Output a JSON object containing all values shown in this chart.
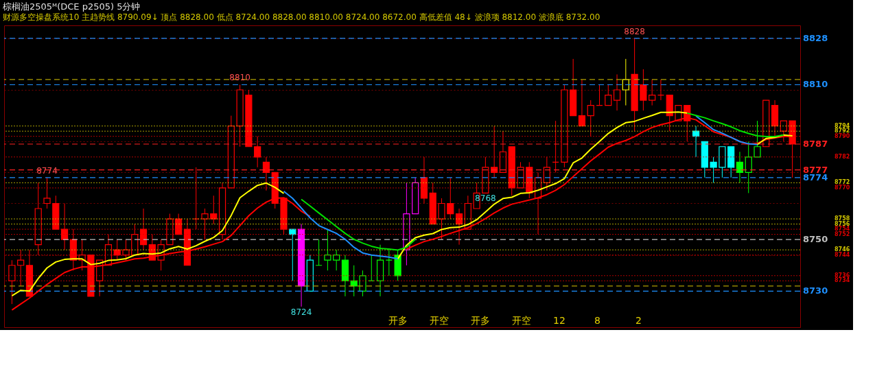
{
  "chart_data": {
    "type": "candlestick",
    "title": "棕榈油2505ᴹ(DCE p2505)  5分钟",
    "subtitle": "财源多空操盘系统10  主趋势线 8790.09↓ 顶点 8828.00  低点 8724.00  8828.00  8810.00  8724.00  8672.00  高低差值 48↓ 波浪项 8812.00  波浪底 8732.00",
    "categories": [
      null,
      null,
      null,
      null,
      null,
      null,
      null,
      null,
      null,
      null,
      null,
      null,
      null,
      null,
      null,
      null,
      null,
      null,
      null,
      null,
      null,
      null,
      null,
      null,
      null,
      null,
      null,
      null,
      null,
      null,
      null,
      null,
      null,
      null,
      null,
      null,
      null,
      null,
      null,
      null,
      null,
      null,
      null,
      null,
      null,
      null,
      null,
      null,
      null,
      null,
      null,
      null,
      null,
      null,
      null,
      null,
      null,
      null,
      null,
      null,
      null,
      null,
      null,
      null,
      null,
      null,
      null,
      null,
      null,
      null,
      null,
      null,
      null,
      null,
      null,
      null,
      null,
      null,
      null,
      null,
      null,
      null,
      null,
      null,
      null,
      null,
      null,
      null,
      null,
      null
    ],
    "ohlc": [
      [
        8734,
        8742,
        8725,
        8740
      ],
      [
        8740,
        8746,
        8732,
        8742
      ],
      [
        8740,
        8746,
        8728,
        8728
      ],
      [
        8748,
        8772,
        8744,
        8762
      ],
      [
        8764,
        8774,
        8762,
        8766
      ],
      [
        8764,
        8767,
        8754,
        8754
      ],
      [
        8754,
        8764,
        8746,
        8750
      ],
      [
        8750,
        8754,
        8738,
        8742
      ],
      [
        8742,
        8750,
        8738,
        8744
      ],
      [
        8744,
        8744,
        8728,
        8728
      ],
      [
        8734,
        8742,
        8728,
        8742
      ],
      [
        8740,
        8752,
        8740,
        8748
      ],
      [
        8746,
        8750,
        8742,
        8744
      ],
      [
        8744,
        8750,
        8742,
        8746
      ],
      [
        8744,
        8756,
        8744,
        8752
      ],
      [
        8754,
        8762,
        8746,
        8748
      ],
      [
        8748,
        8752,
        8742,
        8742
      ],
      [
        8742,
        8750,
        8738,
        8748
      ],
      [
        8748,
        8760,
        8748,
        8758
      ],
      [
        8758,
        8760,
        8752,
        8752
      ],
      [
        8754,
        8758,
        8740,
        8740
      ],
      [
        8758,
        8778,
        8754,
        8758
      ],
      [
        8758,
        8762,
        8750,
        8760
      ],
      [
        8760,
        8767,
        8756,
        8758
      ],
      [
        8752,
        8772,
        8750,
        8770
      ],
      [
        8770,
        8798,
        8770,
        8794
      ],
      [
        8794,
        8810,
        8786,
        8808
      ],
      [
        8806,
        8808,
        8786,
        8786
      ],
      [
        8786,
        8790,
        8778,
        8782
      ],
      [
        8780,
        8782,
        8769,
        8776
      ],
      [
        8776,
        8776,
        8762,
        8764
      ],
      [
        8766,
        8766,
        8752,
        8754
      ],
      [
        8754,
        8754,
        8734,
        8752
      ],
      [
        8754,
        8756,
        8724,
        8732
      ],
      [
        8730,
        8744,
        8730,
        8742
      ],
      [
        8740,
        8750,
        8740,
        8740
      ],
      [
        8742,
        8754,
        8738,
        8744
      ],
      [
        8742,
        8746,
        8738,
        8744
      ],
      [
        8742,
        8744,
        8728,
        8734
      ],
      [
        8734,
        8740,
        8728,
        8732
      ],
      [
        8730,
        8738,
        8728,
        8736
      ],
      [
        8734,
        8744,
        8734,
        8734
      ],
      [
        8734,
        8748,
        8728,
        8742
      ],
      [
        8742,
        8746,
        8736,
        8742
      ],
      [
        8744,
        8746,
        8734,
        8736
      ],
      [
        8746,
        8772,
        8740,
        8760
      ],
      [
        8760,
        8774,
        8760,
        8772
      ],
      [
        8774,
        8782,
        8764,
        8766
      ],
      [
        8768,
        8772,
        8756,
        8756
      ],
      [
        8758,
        8766,
        8750,
        8764
      ],
      [
        8764,
        8774,
        8758,
        8760
      ],
      [
        8760,
        8762,
        8748,
        8756
      ],
      [
        8754,
        8767,
        8754,
        8764
      ],
      [
        8762,
        8772,
        8762,
        8768
      ],
      [
        8768,
        8782,
        8768,
        8778
      ],
      [
        8778,
        8794,
        8774,
        8776
      ],
      [
        8776,
        8792,
        8776,
        8784
      ],
      [
        8786,
        8786,
        8767,
        8770
      ],
      [
        8770,
        8780,
        8770,
        8778
      ],
      [
        8778,
        8780,
        8766,
        8768
      ],
      [
        8766,
        8776,
        8752,
        8774
      ],
      [
        8772,
        8782,
        8769,
        8778
      ],
      [
        8780,
        8796,
        8776,
        8780
      ],
      [
        8780,
        8810,
        8778,
        8808
      ],
      [
        8808,
        8820,
        8798,
        8798
      ],
      [
        8798,
        8812,
        8794,
        8794
      ],
      [
        8798,
        8804,
        8790,
        8802
      ],
      [
        8802,
        8810,
        8802,
        8802
      ],
      [
        8802,
        8810,
        8802,
        8806
      ],
      [
        8804,
        8814,
        8800,
        8808
      ],
      [
        8808,
        8820,
        8802,
        8812
      ],
      [
        8814,
        8828,
        8792,
        8800
      ],
      [
        8810,
        8816,
        8800,
        8804
      ],
      [
        8804,
        8812,
        8802,
        8806
      ],
      [
        8806,
        8812,
        8804,
        8806
      ],
      [
        8806,
        8806,
        8792,
        8798
      ],
      [
        8796,
        8802,
        8796,
        8802
      ],
      [
        8802,
        8802,
        8788,
        8796
      ],
      [
        8792,
        8794,
        8782,
        8790
      ],
      [
        8788,
        8788,
        8774,
        8778
      ],
      [
        8780,
        8782,
        8772,
        8778
      ],
      [
        8778,
        8786,
        8774,
        8786
      ],
      [
        8786,
        8786,
        8774,
        8778
      ],
      [
        8780,
        8784,
        8772,
        8776
      ],
      [
        8776,
        8788,
        8768,
        8782
      ],
      [
        8782,
        8796,
        8782,
        8786
      ],
      [
        8786,
        8804,
        8786,
        8804
      ],
      [
        8802,
        8804,
        8790,
        8794
      ],
      [
        8792,
        8796,
        8788,
        8796
      ],
      [
        8796,
        8796,
        8774,
        8787
      ]
    ],
    "colors": [
      "#ff0000",
      "#ff0000",
      "#ff0000",
      "#ff0000",
      "#ff0000",
      "#ff0000",
      "#ff0000",
      "#ff0000",
      "#ff0000",
      "#ff0000",
      "#ff0000",
      "#ff0000",
      "#ff0000",
      "#ff0000",
      "#ff0000",
      "#ff0000",
      "#ff0000",
      "#ff0000",
      "#ff0000",
      "#ff0000",
      "#ff0000",
      "#ff0000",
      "#ff0000",
      "#ff0000",
      "#ff0000",
      "#ff0000",
      "#ff0000",
      "#ff0000",
      "#ff0000",
      "#ff0000",
      "#ff0000",
      "#ff0000",
      "#00ffff",
      "#ff00ff",
      "#00ffff",
      "#00ff00",
      "#00ff00",
      "#00ff00",
      "#00ff00",
      "#00ff00",
      "#00ff00",
      "#00ff00",
      "#00ff00",
      "#00ff00",
      "#00ff00",
      "#ff00ff",
      "#ff00ff",
      "#ff0000",
      "#ff0000",
      "#ff0000",
      "#ff0000",
      "#ff0000",
      "#ff0000",
      "#ff0000",
      "#ff0000",
      "#ff0000",
      "#ff0000",
      "#ff0000",
      "#ff0000",
      "#ff0000",
      "#ff0000",
      "#ff0000",
      "#ff0000",
      "#ff0000",
      "#ff0000",
      "#ff0000",
      "#ff0000",
      "#ff0000",
      "#ff0000",
      "#ff0000",
      "#ffff00",
      "#ff0000",
      "#ff0000",
      "#ff0000",
      "#ff0000",
      "#ff0000",
      "#ff0000",
      "#ff0000",
      "#00ffff",
      "#00ffff",
      "#00ffff",
      "#00ffff",
      "#00ffff",
      "#00ff00",
      "#00ff00",
      "#00ff00",
      "#ff0000",
      "#ff0000",
      "#ff0000",
      "#ff0000"
    ],
    "series": [
      {
        "type": "line",
        "color": "#ff0000",
        "values": [
          8722.7,
          8725,
          8727.3,
          8730,
          8732.6,
          8734.9,
          8737.2,
          8738.5,
          8739.4,
          8739.4,
          8739.8,
          8740.3,
          8741,
          8741.7,
          8742.5,
          8742.8,
          8743.4,
          8743.9,
          8744.6,
          8745.1,
          8745.5,
          8746.3,
          8747.2,
          8748.2,
          8749.2,
          8751.6,
          8755.4,
          8759.2,
          8762.2,
          8764.5,
          8766,
          8766.2,
          8764,
          8761,
          8759,
          null,
          null,
          null,
          null,
          null,
          null,
          null,
          null,
          null,
          null,
          8746.3,
          8747.8,
          8749.2,
          8750.1,
          8751.2,
          8752.4,
          8753.5,
          8754.6,
          8756.2,
          8758.1,
          8760.3,
          8762.2,
          8763.7,
          8764.5,
          8765.3,
          8766.2,
          8767.4,
          8769.1,
          8771.3,
          8774.4,
          8777.4,
          8780.5,
          8783.1,
          8785.8,
          8787.3,
          8788.4,
          8789.9,
          8791.8,
          8793.4,
          8794.5,
          8795.3,
          8796.4,
          8797.2,
          8796.4,
          8794.1,
          8791.8,
          8790.7,
          8789.6,
          8788,
          8786.9,
          8787.3,
          8788.8,
          8789.4,
          8789.9,
          8789.9
        ]
      },
      {
        "type": "line",
        "color": "#ffff00",
        "values": [
          8728.2,
          8730.3,
          8730,
          8734.9,
          8739,
          8741.3,
          8742.3,
          8742.5,
          8742.5,
          8740.3,
          8740.8,
          8741.9,
          8742.1,
          8742.6,
          8744,
          8744.6,
          8744.4,
          8744.8,
          8746.4,
          8747.3,
          8746.3,
          8747.6,
          8749.3,
          8750.8,
          8753.5,
          8759.3,
          8766.2,
          8768.7,
          8771,
          8771.9,
          8770.2,
          8767.9,
          null,
          null,
          null,
          null,
          null,
          null,
          null,
          null,
          null,
          null,
          null,
          null,
          8742.5,
          8747.8,
          8750.7,
          8751.7,
          8752.3,
          8753.9,
          8754.6,
          8754.8,
          8755.8,
          8757.7,
          8760.7,
          8763.7,
          8765.9,
          8766.4,
          8767.9,
          8768.1,
          8769.1,
          8770.4,
          8771.7,
          8773.6,
          8779.7,
          8781.6,
          8785,
          8788,
          8791.1,
          8793.4,
          8795.3,
          8795.8,
          8797,
          8798.1,
          8799.3,
          8799.3,
          8799.4,
          8799,
          null,
          null,
          null,
          null,
          null,
          null,
          null,
          8786.8,
          8789.2,
          8789.6,
          8790.5,
          8790.2
        ]
      },
      {
        "type": "line",
        "color": "#1e90ff",
        "values": [
          null,
          null,
          null,
          null,
          null,
          null,
          null,
          null,
          null,
          null,
          null,
          null,
          null,
          null,
          null,
          null,
          null,
          null,
          null,
          null,
          null,
          null,
          null,
          null,
          null,
          null,
          null,
          null,
          null,
          null,
          null,
          8768.7,
          8766,
          8762.2,
          8758.4,
          8755.4,
          8753.9,
          8752.4,
          8750.1,
          8747,
          8744.8,
          8744,
          8743.6,
          8743.2,
          8742.5,
          null,
          null,
          null,
          null,
          null,
          null,
          null,
          null,
          null,
          null,
          null,
          null,
          null,
          null,
          null,
          null,
          null,
          null,
          null,
          null,
          null,
          null,
          null,
          null,
          null,
          null,
          null,
          null,
          null,
          null,
          null,
          null,
          null,
          8797.9,
          8795.3,
          8792.6,
          8791.2,
          8789.6,
          8788,
          8787.1,
          8786.8,
          null,
          null,
          null,
          null
        ]
      },
      {
        "type": "line",
        "color": "#00e000",
        "values": [
          null,
          null,
          null,
          null,
          null,
          null,
          null,
          null,
          null,
          null,
          null,
          null,
          null,
          null,
          null,
          null,
          null,
          null,
          null,
          null,
          null,
          null,
          null,
          null,
          null,
          null,
          null,
          null,
          null,
          null,
          null,
          null,
          null,
          8765.6,
          8763,
          8760.3,
          8757.7,
          8755,
          8752.4,
          8750.1,
          8748.6,
          8747.4,
          8746.6,
          8746.3,
          8745.9,
          8747,
          8750.1,
          null,
          null,
          null,
          null,
          null,
          null,
          null,
          null,
          null,
          null,
          null,
          null,
          null,
          null,
          null,
          null,
          null,
          null,
          null,
          null,
          null,
          null,
          null,
          null,
          null,
          null,
          null,
          null,
          null,
          null,
          8799,
          8798.1,
          8797.2,
          8796,
          8794.9,
          8793.7,
          8792.2,
          8791.1,
          8790.2,
          8789.9,
          8789.9,
          8790.5,
          null
        ]
      }
    ],
    "ylim": [
      8716,
      8833
    ],
    "yticks": [
      {
        "value": 8744,
        "label": null
      },
      {
        "value": 8764,
        "label": null
      },
      {
        "value": 8776,
        "label": null
      },
      {
        "value": 8788,
        "label": null
      },
      {
        "value": 8808,
        "label": null
      },
      {
        "value": 8828,
        "label": null
      }
    ],
    "grid": "y",
    "ref_lines": [
      {
        "axis": "y",
        "value": 8828,
        "label": "8828",
        "color": "#1e90ff",
        "line_style": "dashed"
      },
      {
        "axis": "y",
        "value": 8810,
        "label": "8810",
        "color": "#1e90ff",
        "line_style": "dashed"
      },
      {
        "axis": "y",
        "value": 8787,
        "label": "8787",
        "color": "#ff2020",
        "line_style": "dashed"
      },
      {
        "axis": "y",
        "value": 8777,
        "label": "8777",
        "color": "#ff2020",
        "line_style": "dashed"
      },
      {
        "axis": "y",
        "value": 8774,
        "label": "8774",
        "color": "#1e90ff",
        "line_style": "dashed"
      },
      {
        "axis": "y",
        "value": 8750,
        "label": "8750",
        "color": "#c0c0c0",
        "line_style": "dashed"
      },
      {
        "axis": "y",
        "value": 8730,
        "label": "8730",
        "color": "#1e90ff",
        "line_style": "dashed"
      },
      {
        "axis": "y",
        "value": 8812,
        "label": null,
        "color": "#b0a000",
        "line_style": "dashed"
      },
      {
        "axis": "y",
        "value": 8732,
        "label": null,
        "color": "#b0a000",
        "line_style": "dashed"
      },
      {
        "axis": "y",
        "value": 8794,
        "label": "8794",
        "color": "#d4c800",
        "line_style": "dotted"
      },
      {
        "axis": "y",
        "value": 8792,
        "label": "8792",
        "color": "#d4c800",
        "line_style": "dotted"
      },
      {
        "axis": "y",
        "value": 8790,
        "label": "8790",
        "color": "#e00000",
        "line_style": "dotted"
      },
      {
        "axis": "y",
        "value": 8782,
        "label": "8782",
        "color": "#e00000",
        "line_style": "dotted"
      },
      {
        "axis": "y",
        "value": 8772,
        "label": "8772",
        "color": "#d4c800",
        "line_style": "dotted"
      },
      {
        "axis": "y",
        "value": 8770,
        "label": "8770",
        "color": "#e00000",
        "line_style": "dotted"
      },
      {
        "axis": "y",
        "value": 8758,
        "label": "8758",
        "color": "#d4c800",
        "line_style": "dotted"
      },
      {
        "axis": "y",
        "value": 8756,
        "label": "8756",
        "color": "#d4c800",
        "line_style": "dotted"
      },
      {
        "axis": "y",
        "value": 8754,
        "label": "8754",
        "color": "#e00000",
        "line_style": "dotted"
      },
      {
        "axis": "y",
        "value": 8752,
        "label": "8752",
        "color": "#e00000",
        "line_style": "dotted"
      },
      {
        "axis": "y",
        "value": 8746,
        "label": "8746",
        "color": "#d4c800",
        "line_style": "dotted"
      },
      {
        "axis": "y",
        "value": 8744,
        "label": "8744",
        "color": "#e00000",
        "line_style": "dotted"
      },
      {
        "axis": "y",
        "value": 8736,
        "label": "8736",
        "color": "#e00000",
        "line_style": "dotted"
      },
      {
        "axis": "y",
        "value": 8734,
        "label": "8734",
        "color": "#e00000",
        "line_style": "dotted"
      }
    ],
    "annotations": [
      {
        "text": "8774",
        "y": 8774
      },
      {
        "text": "8810",
        "y": 8810
      },
      {
        "text": "8724",
        "y": 8724
      },
      {
        "text": "8828",
        "y": 8828
      },
      {
        "text": "8768",
        "y": 8768
      },
      "开多",
      "开空",
      "开多",
      "开空",
      "12",
      "8",
      "2"
    ]
  }
}
